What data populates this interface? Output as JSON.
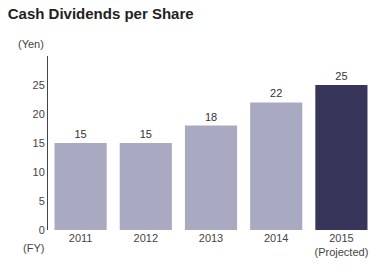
{
  "chart_data": {
    "type": "bar",
    "title": "Cash Dividends per Share",
    "ylabel": "(Yen)",
    "xlabel": "(FY)",
    "categories": [
      "2011",
      "2012",
      "2013",
      "2014",
      "2015\n(Projected)"
    ],
    "values": [
      15,
      15,
      18,
      22,
      25
    ],
    "colors": [
      "#a9a9c2",
      "#a9a9c2",
      "#a9a9c2",
      "#a9a9c2",
      "#37365a"
    ],
    "ylim": [
      0,
      30
    ],
    "yticks": [
      0,
      5,
      10,
      15,
      20,
      25
    ],
    "grid": false,
    "data_labels": true
  }
}
